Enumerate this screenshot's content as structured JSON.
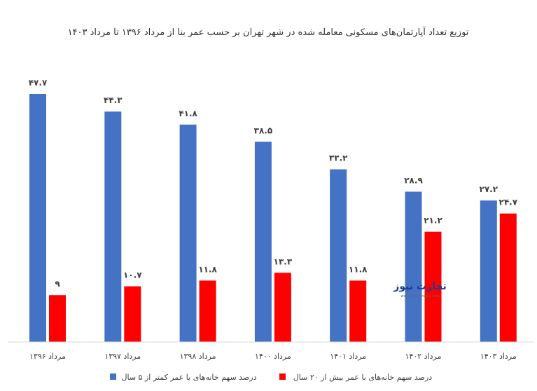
{
  "chart_data": {
    "type": "bar",
    "title": "توزیع تعداد آپارتمان‌های مسکونی معامله شده در شهر تهران بر حسب عمر بنا از مرداد ۱۳۹۶ تا مرداد ۱۴۰۳",
    "xlabel": "",
    "ylabel": "",
    "ylim": [
      0,
      50
    ],
    "grid": false,
    "legend_position": "bottom",
    "categories": [
      "مرداد ۱۳۹۶",
      "مرداد ۱۳۹۷",
      "مرداد ۱۳۹۸",
      "مرداد ۱۴۰۰",
      "مرداد ۱۴۰۱",
      "مرداد ۱۴۰۲",
      "مرداد ۱۴۰۳"
    ],
    "series": [
      {
        "name": "درصد سهم خانه‌های با عمر کمتر از ۵ سال",
        "color": "#4472C4",
        "values": [
          47.7,
          44.3,
          41.8,
          38.5,
          33.2,
          28.9,
          27.2
        ]
      },
      {
        "name": "درصد سهم خانه‌های با عمر بیش از ۲۰ سال",
        "color": "#FF0000",
        "values": [
          9,
          10.7,
          11.8,
          13.3,
          11.8,
          21.2,
          24.7
        ]
      }
    ]
  },
  "watermark": {
    "brand": "تجارت نیوز",
    "site": "www.tejaratnews.com"
  }
}
